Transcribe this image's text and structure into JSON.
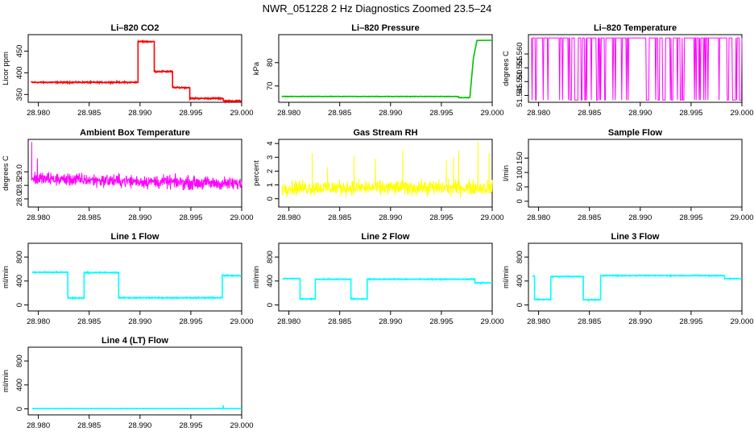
{
  "title": "NWR_051228  2 Hz Diagnostics Zoomed 23.5–24",
  "colors": {
    "red": "#ff0000",
    "green": "#00c000",
    "magenta": "#ff00ff",
    "yellow": "#ffff00",
    "cyan": "#00ffff",
    "axis": "#000000"
  },
  "x_axis": {
    "range": [
      28.979,
      29.0
    ],
    "ticks": [
      28.98,
      28.985,
      28.99,
      28.995,
      29.0
    ],
    "tick_labels": [
      "28.980",
      "28.985",
      "28.990",
      "28.995",
      "29.000"
    ]
  },
  "chart_data": [
    {
      "id": "co2",
      "type": "line",
      "title": "Li–820 CO2",
      "ylabel": "Licor ppm",
      "color": "red",
      "ylim": [
        332,
        488
      ],
      "yticks": [
        350,
        400,
        450
      ],
      "segments": [
        [
          28.9793,
          28.9898,
          378
        ],
        [
          28.9898,
          28.9914,
          472
        ],
        [
          28.9914,
          28.9932,
          403
        ],
        [
          28.9932,
          28.9949,
          366
        ],
        [
          28.9949,
          28.9982,
          341
        ],
        [
          28.9982,
          29.0,
          335
        ]
      ],
      "noise": 2
    },
    {
      "id": "pressure",
      "type": "line",
      "title": "Li–820 Pressure",
      "ylabel": "kPa",
      "color": "green",
      "ylim": [
        63,
        92
      ],
      "yticks": [
        70,
        80
      ],
      "segments": [
        [
          28.9793,
          28.9967,
          65.5
        ],
        [
          28.9967,
          28.9978,
          65
        ]
      ],
      "ramp": [
        [
          28.9978,
          65
        ],
        [
          28.99815,
          82
        ],
        [
          28.9985,
          89.5
        ],
        [
          29.0,
          89.5
        ]
      ],
      "noise": 0.12
    },
    {
      "id": "temperature",
      "type": "line",
      "title": "Li–820 Temperature",
      "ylabel": "degrees C",
      "color": "magenta",
      "ylim": [
        51.5425,
        51.567
      ],
      "yticks": [
        51.545,
        51.55,
        51.555,
        51.56
      ],
      "ytick_labels": [
        "51.545",
        "51.550",
        "51.555",
        "51.560"
      ],
      "binary": {
        "high": 51.5658,
        "low": 51.5433,
        "switch_prob": 0.12
      }
    },
    {
      "id": "box_temp",
      "type": "line",
      "title": "Ambient Box Temperature",
      "ylabel": "degrees C",
      "color": "magenta",
      "ylim": [
        27.7,
        30.2
      ],
      "yticks": [
        28.0,
        28.5,
        29.0
      ],
      "ytick_labels": [
        "28.0",
        "28.5",
        "29.0"
      ],
      "trend": [
        [
          28.9793,
          28.75
        ],
        [
          29.0,
          28.55
        ]
      ],
      "noise": 0.18,
      "spikes": [
        [
          28.97935,
          30.1
        ],
        [
          28.9799,
          29.5
        ]
      ]
    },
    {
      "id": "rh",
      "type": "line",
      "title": "Gas Stream RH",
      "ylabel": "percent",
      "color": "yellow",
      "ylim": [
        -0.6,
        4.3
      ],
      "yticks": [
        0,
        1,
        2,
        3,
        4
      ],
      "trend": [
        [
          28.9793,
          0.8
        ],
        [
          29.0,
          0.8
        ]
      ],
      "noise": 0.4,
      "spikes": [
        [
          28.9823,
          3.3
        ],
        [
          28.9838,
          2.3
        ],
        [
          28.9864,
          3.1
        ],
        [
          28.9885,
          2.9
        ],
        [
          28.9912,
          3.6
        ],
        [
          28.9955,
          2.8
        ],
        [
          28.9962,
          3.0
        ],
        [
          28.9967,
          3.5
        ],
        [
          28.9986,
          4.1
        ],
        [
          28.9997,
          3.3
        ]
      ]
    },
    {
      "id": "sample_flow",
      "type": "line",
      "title": "Sample Flow",
      "ylabel": "l/min",
      "color": "cyan",
      "ylim": [
        -20,
        215
      ],
      "yticks": [
        0,
        50,
        100,
        150
      ],
      "empty": true
    },
    {
      "id": "line1",
      "type": "line",
      "title": "Line 1 Flow",
      "ylabel": "ml/min",
      "color": "cyan",
      "ylim": [
        -100,
        1030
      ],
      "yticks": [
        0,
        400,
        800
      ],
      "segments": [
        [
          28.9794,
          28.9829,
          545
        ],
        [
          28.9829,
          28.9845,
          115
        ],
        [
          28.9845,
          28.9879,
          540
        ],
        [
          28.9879,
          28.9981,
          120
        ],
        [
          28.9981,
          29.0,
          490
        ]
      ],
      "noise": 12
    },
    {
      "id": "line2",
      "type": "line",
      "title": "Line 2 Flow",
      "ylabel": "ml/min",
      "color": "cyan",
      "ylim": [
        -100,
        1030
      ],
      "yticks": [
        0,
        400,
        800
      ],
      "segments": [
        [
          28.9794,
          28.9811,
          440
        ],
        [
          28.9811,
          28.9826,
          100
        ],
        [
          28.9826,
          28.9861,
          430
        ],
        [
          28.9861,
          28.9877,
          100
        ],
        [
          28.9877,
          28.9983,
          430
        ],
        [
          28.9983,
          29.0,
          370
        ]
      ],
      "noise": 10
    },
    {
      "id": "line3",
      "type": "line",
      "title": "Line 3 Flow",
      "ylabel": "ml/min",
      "color": "cyan",
      "ylim": [
        -100,
        1030
      ],
      "yticks": [
        0,
        400,
        800
      ],
      "segments": [
        [
          28.9794,
          28.9796,
          480
        ],
        [
          28.9796,
          28.9812,
          90
        ],
        [
          28.9812,
          28.9844,
          475
        ],
        [
          28.9844,
          28.9861,
          85
        ],
        [
          28.9861,
          28.9983,
          490
        ],
        [
          28.9983,
          29.0,
          440
        ]
      ],
      "noise": 10
    },
    {
      "id": "line4",
      "type": "line",
      "title": "Line 4 (LT) Flow",
      "ylabel": "ml/min",
      "color": "cyan",
      "ylim": [
        -100,
        1030
      ],
      "yticks": [
        0,
        400,
        800
      ],
      "segments": [
        [
          28.9794,
          29.0,
          5
        ]
      ],
      "noise": 4,
      "spikes": [
        [
          28.9982,
          60
        ]
      ]
    }
  ]
}
